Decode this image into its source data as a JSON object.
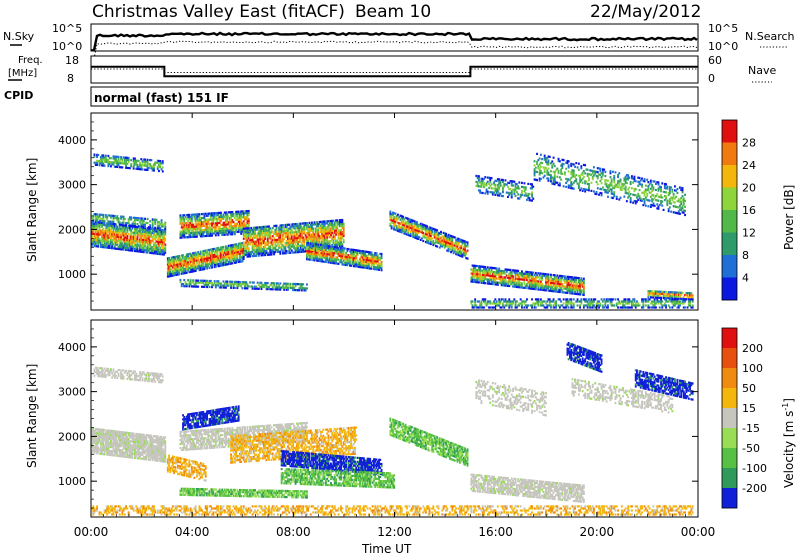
{
  "header": {
    "title": "Christmas Valley East (fitACF)",
    "beam": "Beam 10",
    "date": "22/May/2012"
  },
  "nsky_panel": {
    "left_label": "N.Sky",
    "right_label": "N.Search",
    "left_ticks": [
      "10^5",
      "10^0"
    ],
    "right_ticks": [
      "10^5",
      "10^0"
    ]
  },
  "freq_panel": {
    "left_label_line1": "Freq.",
    "left_label_line2": "[MHz]",
    "left_ticks": [
      "18",
      "8"
    ],
    "right_label": "Nave",
    "right_ticks": [
      "60",
      "0"
    ]
  },
  "cpid": {
    "label": "CPID",
    "value": "normal (fast) 151 IF"
  },
  "x_axis": {
    "label": "Time UT",
    "ticks": [
      "00:00",
      "04:00",
      "08:00",
      "12:00",
      "16:00",
      "20:00",
      "00:00"
    ]
  },
  "chart_data": [
    {
      "type": "line",
      "name": "freq",
      "x_hours": [
        0,
        2.9,
        2.9,
        15.0,
        15.0,
        24
      ],
      "y_mhz": [
        14,
        14,
        10.5,
        10.5,
        14,
        14
      ],
      "ylim": [
        8,
        18
      ]
    },
    {
      "type": "heatmap",
      "name": "power",
      "ylabel": "Slant Range [km]",
      "yticks": [
        1000,
        2000,
        3000,
        4000
      ],
      "ylim": [
        200,
        4600
      ],
      "xlim_hours": [
        0,
        24
      ],
      "colorbar": {
        "label": "Power [dB]",
        "ticks": [
          "4",
          "8",
          "12",
          "16",
          "20",
          "24",
          "28"
        ],
        "colors": [
          "#0b18e0",
          "#1f6fd6",
          "#2f9a6a",
          "#52b84a",
          "#8ed43b",
          "#f4b60d",
          "#f07a10",
          "#e01010"
        ]
      }
    },
    {
      "type": "heatmap",
      "name": "velocity",
      "ylabel": "Slant Range [km]",
      "yticks": [
        1000,
        2000,
        3000,
        4000
      ],
      "ylim": [
        200,
        4600
      ],
      "xlim_hours": [
        0,
        24
      ],
      "colorbar": {
        "label": "Velocity [m s",
        "label_sup": "-1",
        "label_end": "]",
        "ticks": [
          "200",
          "100",
          "50",
          "15",
          "-15",
          "-50",
          "-100",
          "-200"
        ],
        "colors": [
          "#1020d8",
          "#2f9a5a",
          "#58c043",
          "#98dd55",
          "#c6c6be",
          "#f4b60d",
          "#f08a10",
          "#e85010",
          "#e01010"
        ]
      }
    }
  ]
}
